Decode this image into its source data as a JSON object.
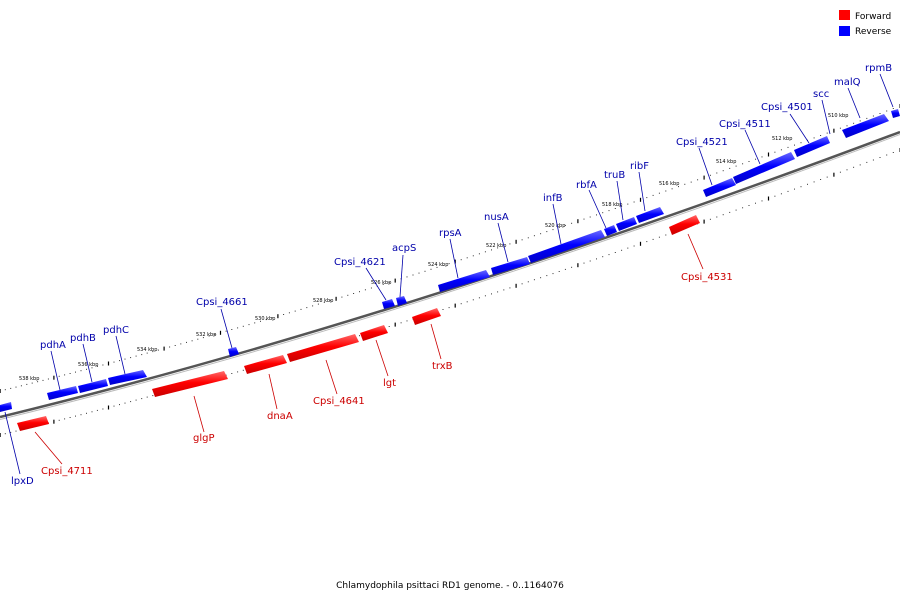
{
  "caption": "Chlamydophila psittaci RD1 genome. - 0..1164076",
  "legend": [
    {
      "label": "Forward",
      "color": "#ff0000"
    },
    {
      "label": "Reverse",
      "color": "#0000ff"
    }
  ],
  "colors": {
    "forward": "#ff0000",
    "reverse": "#0000ff",
    "forward_label": "#cc0000",
    "reverse_label": "#0000aa",
    "backbone": "#888888"
  },
  "scale_labels": [
    "538 kbp",
    "536 kbp",
    "534 kbp",
    "532 kbp",
    "530 kbp",
    "528 kbp",
    "526 kbp",
    "524 kbp",
    "522 kbp",
    "520 kbp",
    "518 kbp",
    "516 kbp",
    "514 kbp",
    "512 kbp",
    "510 kbp"
  ],
  "genes": [
    {
      "name": "lpxD",
      "strand": "reverse"
    },
    {
      "name": "pdhA",
      "strand": "reverse"
    },
    {
      "name": "pdhB",
      "strand": "reverse"
    },
    {
      "name": "pdhC",
      "strand": "reverse"
    },
    {
      "name": "Cpsi_4661",
      "strand": "reverse"
    },
    {
      "name": "Cpsi_4621",
      "strand": "reverse"
    },
    {
      "name": "acpS",
      "strand": "reverse"
    },
    {
      "name": "rpsA",
      "strand": "reverse"
    },
    {
      "name": "nusA",
      "strand": "reverse"
    },
    {
      "name": "infB",
      "strand": "reverse"
    },
    {
      "name": "rbfA",
      "strand": "reverse"
    },
    {
      "name": "truB",
      "strand": "reverse"
    },
    {
      "name": "ribF",
      "strand": "reverse"
    },
    {
      "name": "Cpsi_4521",
      "strand": "reverse"
    },
    {
      "name": "Cpsi_4511",
      "strand": "reverse"
    },
    {
      "name": "Cpsi_4501",
      "strand": "reverse"
    },
    {
      "name": "scc",
      "strand": "reverse"
    },
    {
      "name": "malQ",
      "strand": "reverse"
    },
    {
      "name": "rpmB",
      "strand": "reverse"
    },
    {
      "name": "Cpsi_4711",
      "strand": "forward"
    },
    {
      "name": "glgP",
      "strand": "forward"
    },
    {
      "name": "dnaA",
      "strand": "forward"
    },
    {
      "name": "Cpsi_4641",
      "strand": "forward"
    },
    {
      "name": "lgt",
      "strand": "forward"
    },
    {
      "name": "trxB",
      "strand": "forward"
    },
    {
      "name": "Cpsi_4531",
      "strand": "forward"
    }
  ]
}
